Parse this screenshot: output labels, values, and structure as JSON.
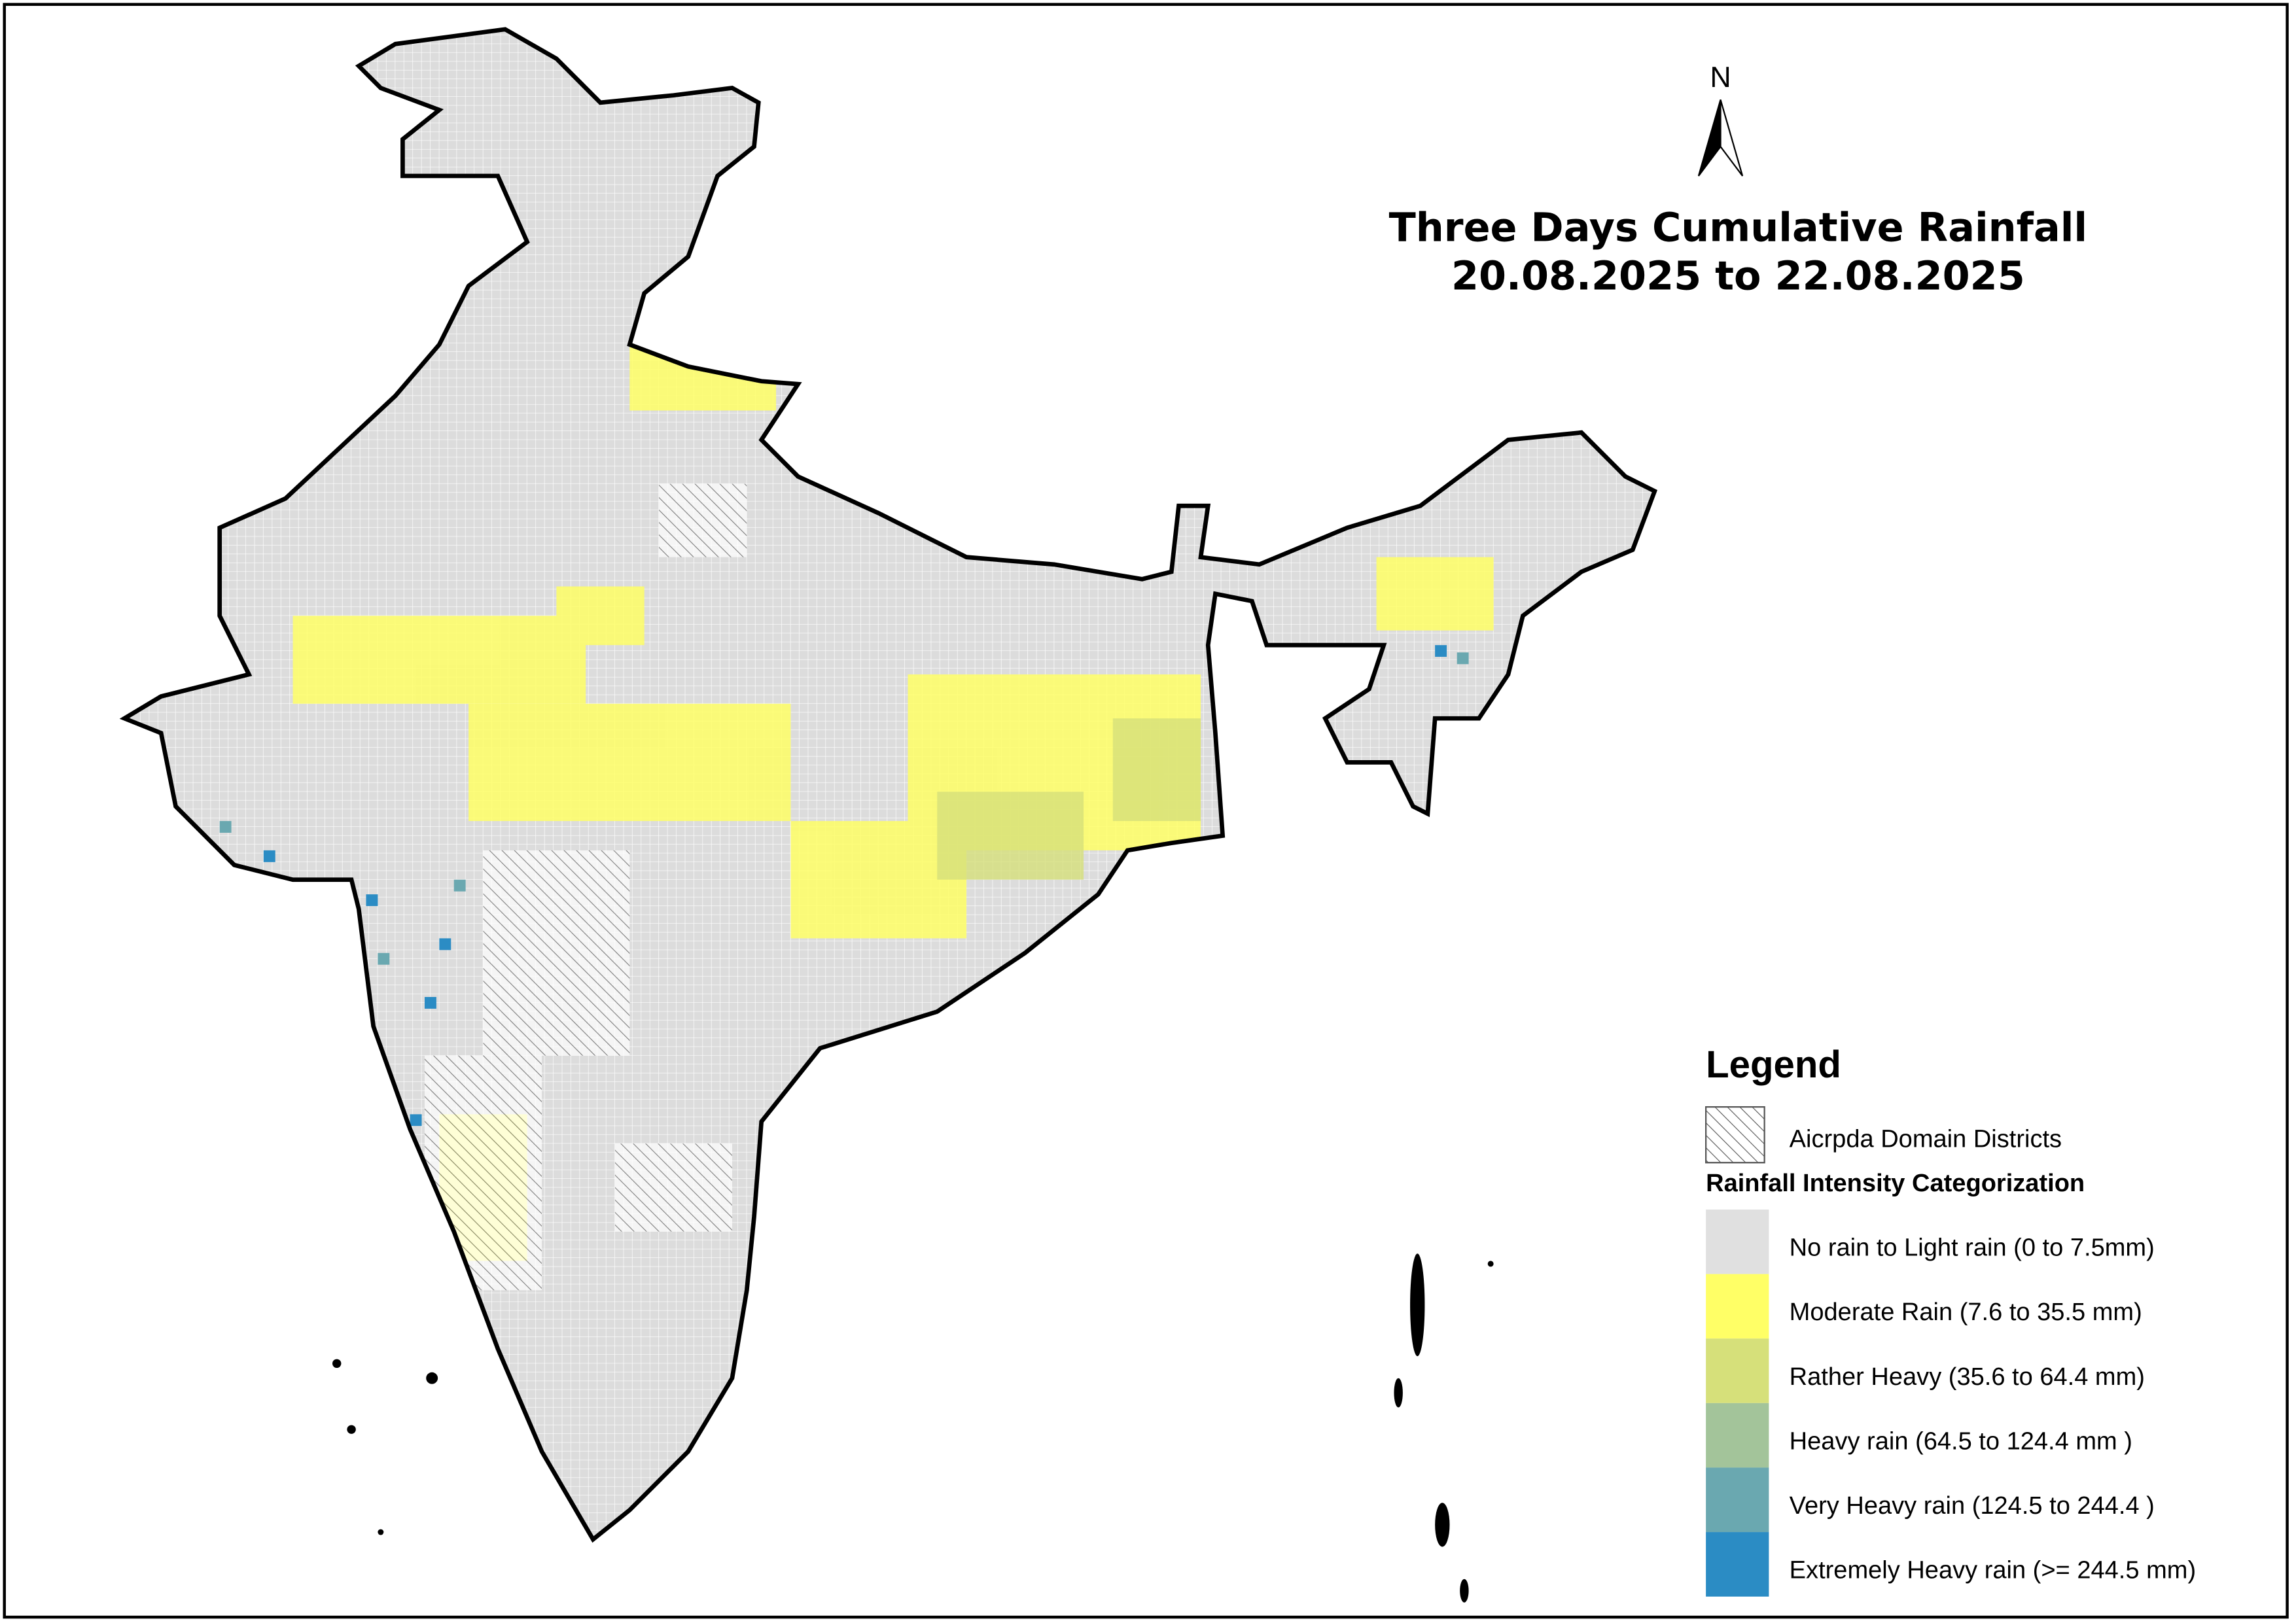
{
  "north": "N",
  "title": [
    "Three Days Cumulative Rainfall",
    "20.08.2025 to 22.08.2025"
  ],
  "legend": {
    "title": "Legend",
    "hatch_label": "Aicrpda Domain Districts",
    "subtitle": "Rainfall Intensity Categorization",
    "items": [
      {
        "label": "No rain to Light rain (0 to 7.5mm)",
        "color": "#e0e0e0"
      },
      {
        "label": "Moderate Rain (7.6 to 35.5 mm)",
        "color": "#ffff66"
      },
      {
        "label": "Rather Heavy (35.6 to 64.4 mm)",
        "color": "#d6e07a"
      },
      {
        "label": "Heavy rain (64.5 to 124.4 mm )",
        "color": "#a3c49a"
      },
      {
        "label": "Very Heavy rain (124.5 to 244.4 )",
        "color": "#6aa8b0"
      },
      {
        "label": "Extremely Heavy rain  (>= 244.5 mm)",
        "color": "#2b8cc4"
      }
    ]
  }
}
